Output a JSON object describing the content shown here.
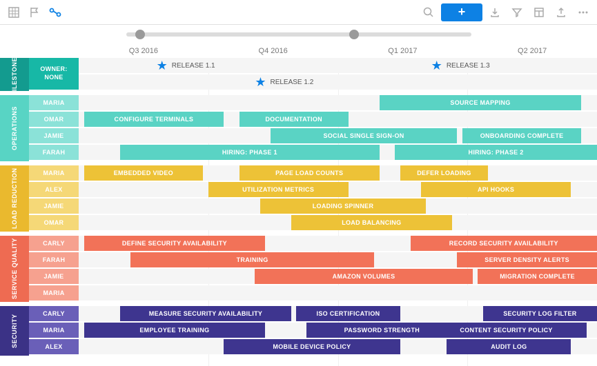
{
  "toolbar": {
    "add_label": "+"
  },
  "slider": {
    "handle1_pct": 4,
    "handle2_pct": 66
  },
  "quarters": [
    "Q3 2016",
    "Q4 2016",
    "Q1 2017",
    "Q2 2017"
  ],
  "colors": {
    "milestones_section": "#139b8f",
    "milestones_owner": "#17b8a6",
    "operations_section": "#58d4c4",
    "operations_owner": "#8be2d8",
    "operations_bar": "#5ad3c4",
    "load_section": "#eab92e",
    "load_owner": "#f5d877",
    "load_bar": "#edc237",
    "service_section": "#ee6b52",
    "service_owner": "#f6a18f",
    "service_bar": "#f27258",
    "security_section": "#3b3286",
    "security_owner": "#6a5fb8",
    "security_bar": "#3e358f",
    "row_bg": "#f5f5f5",
    "star": "#0d81e4"
  },
  "sections": [
    {
      "id": "milestones",
      "label": "MILESTONES",
      "section_color_key": "milestones_section",
      "owner_color_key": "milestones_owner",
      "bar_color_key": "milestones_owner",
      "rows": [
        {
          "owner": "OWNER:",
          "owner2": "NONE",
          "milestones": [
            {
              "label": "RELEASE 1.1",
              "pos": 15
            },
            {
              "label": "RELEASE 1.3",
              "pos": 68
            }
          ]
        },
        {
          "owner": "",
          "milestones": [
            {
              "label": "RELEASE 1.2",
              "pos": 34
            }
          ]
        }
      ]
    },
    {
      "id": "operations",
      "label": "OPERATIONS",
      "section_color_key": "operations_section",
      "owner_color_key": "operations_owner",
      "bar_color_key": "operations_bar",
      "rows": [
        {
          "owner": "MARIA",
          "bars": [
            {
              "label": "SOURCE MAPPING",
              "start": 58,
              "end": 97
            }
          ]
        },
        {
          "owner": "OMAR",
          "bars": [
            {
              "label": "CONFIGURE TERMINALS",
              "start": 1,
              "end": 28
            },
            {
              "label": "DOCUMENTATION",
              "start": 31,
              "end": 52
            }
          ]
        },
        {
          "owner": "JAMIE",
          "bars": [
            {
              "label": "SOCIAL SINGLE SIGN-ON",
              "start": 37,
              "end": 73
            },
            {
              "label": "ONBOARDING COMPLETE",
              "start": 74,
              "end": 97
            }
          ]
        },
        {
          "owner": "FARAH",
          "bars": [
            {
              "label": "HIRING: PHASE 1",
              "start": 8,
              "end": 58
            },
            {
              "label": "HIRING: PHASE 2",
              "start": 61,
              "end": 100
            }
          ]
        }
      ]
    },
    {
      "id": "load",
      "label": "LOAD REDUCTION",
      "section_color_key": "load_section",
      "owner_color_key": "load_owner",
      "bar_color_key": "load_bar",
      "rows": [
        {
          "owner": "MARIA",
          "bars": [
            {
              "label": "EMBEDDED VIDEO",
              "start": 1,
              "end": 24
            },
            {
              "label": "PAGE LOAD COUNTS",
              "start": 31,
              "end": 58
            },
            {
              "label": "DEFER LOADING",
              "start": 62,
              "end": 79
            }
          ]
        },
        {
          "owner": "ALEX",
          "bars": [
            {
              "label": "UTILIZATION METRICS",
              "start": 25,
              "end": 52
            },
            {
              "label": "API HOOKS",
              "start": 66,
              "end": 95
            }
          ]
        },
        {
          "owner": "JAMIE",
          "bars": [
            {
              "label": "LOADING SPINNER",
              "start": 35,
              "end": 67
            }
          ]
        },
        {
          "owner": "OMAR",
          "bars": [
            {
              "label": "LOAD BALANCING",
              "start": 41,
              "end": 72
            }
          ]
        }
      ]
    },
    {
      "id": "service",
      "label": "SERVICE QUALITY",
      "section_color_key": "service_section",
      "owner_color_key": "service_owner",
      "bar_color_key": "service_bar",
      "rows": [
        {
          "owner": "CARLY",
          "bars": [
            {
              "label": "DEFINE SECURITY AVAILABILITY",
              "start": 1,
              "end": 36
            },
            {
              "label": "RECORD SECURITY AVAILABILITY",
              "start": 64,
              "end": 100
            }
          ]
        },
        {
          "owner": "FARAH",
          "bars": [
            {
              "label": "TRAINING",
              "start": 10,
              "end": 57
            },
            {
              "label": "SERVER DENSITY ALERTS",
              "start": 73,
              "end": 100
            }
          ]
        },
        {
          "owner": "JAMIE",
          "bars": [
            {
              "label": "AMAZON VOLUMES",
              "start": 34,
              "end": 76
            },
            {
              "label": "MIGRATION COMPLETE",
              "start": 77,
              "end": 100
            }
          ]
        },
        {
          "owner": "MARIA",
          "bars": []
        }
      ]
    },
    {
      "id": "security",
      "label": "SECURITY",
      "section_color_key": "security_section",
      "owner_color_key": "security_owner",
      "bar_color_key": "security_bar",
      "rows": [
        {
          "owner": "CARLY",
          "bars": [
            {
              "label": "MEASURE SECURITY AVAILABILITY",
              "start": 8,
              "end": 41
            },
            {
              "label": "ISO CERTIFICATION",
              "start": 42,
              "end": 62
            },
            {
              "label": "SECURITY LOG FILTER",
              "start": 78,
              "end": 100
            }
          ]
        },
        {
          "owner": "MARIA",
          "bars": [
            {
              "label": "EMPLOYEE TRAINING",
              "start": 1,
              "end": 36
            },
            {
              "label": "PASSWORD STRENGTH",
              "start": 44,
              "end": 73
            },
            {
              "label": "CONTENT SECURITY POLICY",
              "start": 67,
              "end": 98
            }
          ]
        },
        {
          "owner": "ALEX",
          "bars": [
            {
              "label": "MOBILE DEVICE POLICY",
              "start": 28,
              "end": 62
            },
            {
              "label": "AUDIT LOG",
              "start": 71,
              "end": 95
            }
          ]
        }
      ]
    }
  ]
}
